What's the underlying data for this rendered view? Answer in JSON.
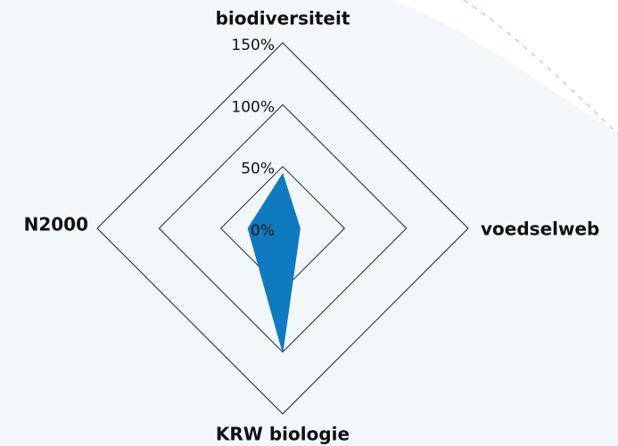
{
  "chart_data": {
    "type": "radar",
    "categories": [
      "biodiversiteit",
      "voedselweb",
      "KRW biologie",
      "N2000"
    ],
    "values": [
      44,
      14,
      100,
      28
    ],
    "color": "#0f7ac0",
    "ylim": [
      0,
      150
    ],
    "yticks": [
      {
        "value": 0,
        "label": "0%"
      },
      {
        "value": 50,
        "label": "50%"
      },
      {
        "value": 100,
        "label": "100%"
      },
      {
        "value": 150,
        "label": "150%"
      }
    ]
  }
}
